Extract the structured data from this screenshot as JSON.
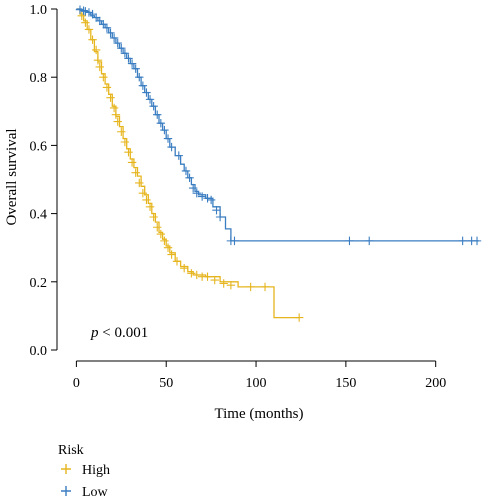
{
  "chart_data": {
    "type": "line",
    "subtype": "kaplan-meier",
    "title": "",
    "xlabel": "Time (months)",
    "ylabel": "Overall survival",
    "xlim": [
      -3,
      228
    ],
    "ylim": [
      0,
      1.0
    ],
    "xticks": [
      0,
      50,
      100,
      150,
      200
    ],
    "yticks": [
      0.0,
      0.2,
      0.4,
      0.6,
      0.8,
      1.0
    ],
    "ytick_labels": [
      "0.0",
      "0.2",
      "0.4",
      "0.6",
      "0.8",
      "1.0"
    ],
    "grid": false,
    "legend": {
      "title": "Risk",
      "position": "bottom-left"
    },
    "annotation": {
      "p_symbol": "p",
      "p_text": " < 0.001"
    },
    "series": [
      {
        "name": "High",
        "color": "#E6B51E",
        "steps": [
          [
            0,
            1.0
          ],
          [
            2,
            0.985
          ],
          [
            4,
            0.965
          ],
          [
            6,
            0.94
          ],
          [
            8,
            0.91
          ],
          [
            10,
            0.875
          ],
          [
            12,
            0.845
          ],
          [
            14,
            0.81
          ],
          [
            16,
            0.78
          ],
          [
            18,
            0.75
          ],
          [
            20,
            0.715
          ],
          [
            22,
            0.685
          ],
          [
            24,
            0.655
          ],
          [
            26,
            0.62
          ],
          [
            28,
            0.59
          ],
          [
            30,
            0.56
          ],
          [
            32,
            0.535
          ],
          [
            34,
            0.51
          ],
          [
            36,
            0.48
          ],
          [
            38,
            0.455
          ],
          [
            40,
            0.43
          ],
          [
            42,
            0.4
          ],
          [
            44,
            0.375
          ],
          [
            46,
            0.345
          ],
          [
            48,
            0.325
          ],
          [
            50,
            0.305
          ],
          [
            52,
            0.285
          ],
          [
            55,
            0.26
          ],
          [
            58,
            0.245
          ],
          [
            62,
            0.23
          ],
          [
            65,
            0.22
          ],
          [
            72,
            0.215
          ],
          [
            80,
            0.2
          ],
          [
            90,
            0.185
          ],
          [
            108,
            0.185
          ],
          [
            110,
            0.095
          ],
          [
            124,
            0.095
          ]
        ],
        "censors": [
          [
            3,
            0.98
          ],
          [
            5,
            0.96
          ],
          [
            7,
            0.94
          ],
          [
            9,
            0.91
          ],
          [
            11,
            0.88
          ],
          [
            12,
            0.85
          ],
          [
            13,
            0.83
          ],
          [
            15,
            0.8
          ],
          [
            17,
            0.77
          ],
          [
            19,
            0.74
          ],
          [
            21,
            0.71
          ],
          [
            22,
            0.69
          ],
          [
            23,
            0.67
          ],
          [
            25,
            0.64
          ],
          [
            27,
            0.61
          ],
          [
            29,
            0.58
          ],
          [
            31,
            0.55
          ],
          [
            33,
            0.52
          ],
          [
            35,
            0.49
          ],
          [
            37,
            0.46
          ],
          [
            39,
            0.44
          ],
          [
            41,
            0.42
          ],
          [
            43,
            0.39
          ],
          [
            45,
            0.36
          ],
          [
            47,
            0.34
          ],
          [
            49,
            0.32
          ],
          [
            51,
            0.3
          ],
          [
            53,
            0.28
          ],
          [
            56,
            0.26
          ],
          [
            60,
            0.24
          ],
          [
            64,
            0.225
          ],
          [
            67,
            0.22
          ],
          [
            70,
            0.215
          ],
          [
            73,
            0.215
          ],
          [
            77,
            0.205
          ],
          [
            82,
            0.195
          ],
          [
            86,
            0.19
          ],
          [
            97,
            0.185
          ],
          [
            105,
            0.185
          ],
          [
            124,
            0.095
          ]
        ]
      },
      {
        "name": "Low",
        "color": "#3A7DC1",
        "steps": [
          [
            0,
            1.0
          ],
          [
            3,
            0.995
          ],
          [
            6,
            0.99
          ],
          [
            8,
            0.98
          ],
          [
            10,
            0.975
          ],
          [
            12,
            0.965
          ],
          [
            14,
            0.955
          ],
          [
            16,
            0.945
          ],
          [
            18,
            0.93
          ],
          [
            20,
            0.915
          ],
          [
            22,
            0.9
          ],
          [
            24,
            0.885
          ],
          [
            26,
            0.87
          ],
          [
            28,
            0.855
          ],
          [
            30,
            0.84
          ],
          [
            32,
            0.825
          ],
          [
            34,
            0.8
          ],
          [
            36,
            0.775
          ],
          [
            38,
            0.755
          ],
          [
            40,
            0.735
          ],
          [
            42,
            0.715
          ],
          [
            44,
            0.69
          ],
          [
            46,
            0.665
          ],
          [
            48,
            0.645
          ],
          [
            50,
            0.62
          ],
          [
            52,
            0.595
          ],
          [
            55,
            0.57
          ],
          [
            58,
            0.545
          ],
          [
            60,
            0.525
          ],
          [
            62,
            0.505
          ],
          [
            64,
            0.485
          ],
          [
            66,
            0.465
          ],
          [
            68,
            0.455
          ],
          [
            72,
            0.445
          ],
          [
            76,
            0.42
          ],
          [
            80,
            0.39
          ],
          [
            83,
            0.355
          ],
          [
            86,
            0.32
          ],
          [
            224,
            0.32
          ]
        ],
        "censors": [
          [
            2,
            0.998
          ],
          [
            4,
            0.995
          ],
          [
            5,
            0.993
          ],
          [
            7,
            0.99
          ],
          [
            9,
            0.985
          ],
          [
            11,
            0.975
          ],
          [
            13,
            0.965
          ],
          [
            15,
            0.955
          ],
          [
            17,
            0.945
          ],
          [
            19,
            0.93
          ],
          [
            21,
            0.915
          ],
          [
            23,
            0.9
          ],
          [
            25,
            0.885
          ],
          [
            27,
            0.87
          ],
          [
            29,
            0.855
          ],
          [
            31,
            0.84
          ],
          [
            33,
            0.825
          ],
          [
            35,
            0.8
          ],
          [
            37,
            0.775
          ],
          [
            39,
            0.755
          ],
          [
            41,
            0.735
          ],
          [
            43,
            0.715
          ],
          [
            45,
            0.69
          ],
          [
            47,
            0.665
          ],
          [
            49,
            0.645
          ],
          [
            51,
            0.62
          ],
          [
            53,
            0.595
          ],
          [
            57,
            0.57
          ],
          [
            61,
            0.525
          ],
          [
            63,
            0.505
          ],
          [
            65,
            0.475
          ],
          [
            67,
            0.46
          ],
          [
            70,
            0.45
          ],
          [
            73,
            0.445
          ],
          [
            75,
            0.44
          ],
          [
            78,
            0.41
          ],
          [
            80,
            0.39
          ],
          [
            86,
            0.32
          ],
          [
            88,
            0.32
          ],
          [
            152,
            0.32
          ],
          [
            163,
            0.32
          ],
          [
            215,
            0.32
          ],
          [
            220,
            0.32
          ],
          [
            223,
            0.32
          ]
        ]
      }
    ]
  }
}
